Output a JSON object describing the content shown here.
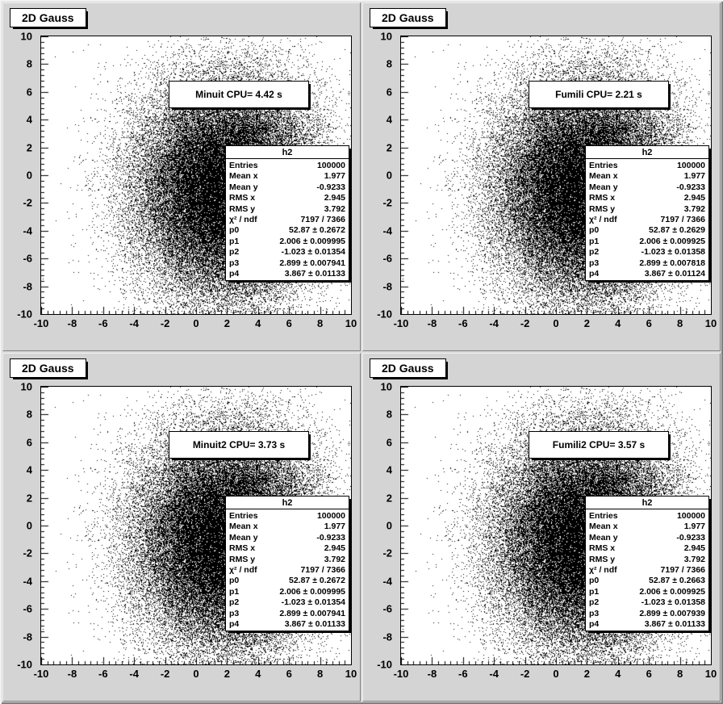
{
  "window": {
    "background": "#d4d4d4",
    "accent": "#000000"
  },
  "axis": {
    "min": -10,
    "max": 10,
    "ticks": [
      -10,
      -8,
      -6,
      -4,
      -2,
      0,
      2,
      4,
      6,
      8,
      10
    ]
  },
  "pads": [
    {
      "title": "2D Gauss",
      "fit_label": "Minuit CPU= 4.42 s",
      "stats": {
        "name": "h2",
        "rows": [
          {
            "label": "Entries",
            "value": "100000"
          },
          {
            "label": "Mean x",
            "value": "1.977"
          },
          {
            "label": "Mean y",
            "value": "-0.9233"
          },
          {
            "label": "RMS x",
            "value": "2.945"
          },
          {
            "label": "RMS y",
            "value": "3.792"
          },
          {
            "label": "χ² / ndf",
            "value": "7197 / 7366"
          },
          {
            "label": "p0",
            "value": "52.87 ± 0.2672"
          },
          {
            "label": "p1",
            "value": "2.006 ± 0.009995"
          },
          {
            "label": "p2",
            "value": "-1.023 ± 0.01354"
          },
          {
            "label": "p3",
            "value": "2.899 ± 0.007941"
          },
          {
            "label": "p4",
            "value": "3.867 ± 0.01133"
          }
        ]
      }
    },
    {
      "title": "2D Gauss",
      "fit_label": "Fumili CPU= 2.21 s",
      "stats": {
        "name": "h2",
        "rows": [
          {
            "label": "Entries",
            "value": "100000"
          },
          {
            "label": "Mean x",
            "value": "1.977"
          },
          {
            "label": "Mean y",
            "value": "-0.9233"
          },
          {
            "label": "RMS x",
            "value": "2.945"
          },
          {
            "label": "RMS y",
            "value": "3.792"
          },
          {
            "label": "χ² / ndf",
            "value": "7197 / 7366"
          },
          {
            "label": "p0",
            "value": "52.87 ± 0.2629"
          },
          {
            "label": "p1",
            "value": "2.006 ± 0.009925"
          },
          {
            "label": "p2",
            "value": "-1.023 ± 0.01358"
          },
          {
            "label": "p3",
            "value": "2.899 ± 0.007818"
          },
          {
            "label": "p4",
            "value": "3.867 ± 0.01124"
          }
        ]
      }
    },
    {
      "title": "2D Gauss",
      "fit_label": "Minuit2 CPU= 3.73 s",
      "stats": {
        "name": "h2",
        "rows": [
          {
            "label": "Entries",
            "value": "100000"
          },
          {
            "label": "Mean x",
            "value": "1.977"
          },
          {
            "label": "Mean y",
            "value": "-0.9233"
          },
          {
            "label": "RMS x",
            "value": "2.945"
          },
          {
            "label": "RMS y",
            "value": "3.792"
          },
          {
            "label": "χ² / ndf",
            "value": "7197 / 7366"
          },
          {
            "label": "p0",
            "value": "52.87 ± 0.2672"
          },
          {
            "label": "p1",
            "value": "2.006 ± 0.009995"
          },
          {
            "label": "p2",
            "value": "-1.023 ± 0.01354"
          },
          {
            "label": "p3",
            "value": "2.899 ± 0.007941"
          },
          {
            "label": "p4",
            "value": "3.867 ± 0.01133"
          }
        ]
      }
    },
    {
      "title": "2D Gauss",
      "fit_label": "Fumili2 CPU= 3.57 s",
      "stats": {
        "name": "h2",
        "rows": [
          {
            "label": "Entries",
            "value": "100000"
          },
          {
            "label": "Mean x",
            "value": "1.977"
          },
          {
            "label": "Mean y",
            "value": "-0.9233"
          },
          {
            "label": "RMS x",
            "value": "2.945"
          },
          {
            "label": "RMS y",
            "value": "3.792"
          },
          {
            "label": "χ² / ndf",
            "value": "7197 / 7366"
          },
          {
            "label": "p0",
            "value": "52.87 ± 0.2663"
          },
          {
            "label": "p1",
            "value": "2.006 ± 0.009925"
          },
          {
            "label": "p2",
            "value": "-1.023 ± 0.01358"
          },
          {
            "label": "p3",
            "value": "2.899 ± 0.007939"
          },
          {
            "label": "p4",
            "value": "3.867 ± 0.01133"
          }
        ]
      }
    }
  ],
  "chart_data": [
    {
      "type": "scatter",
      "title": "2D Gauss",
      "xlabel": "",
      "ylabel": "",
      "xlim": [
        -10,
        10
      ],
      "ylim": [
        -10,
        10
      ],
      "x_ticks": [
        -10,
        -8,
        -6,
        -4,
        -2,
        0,
        2,
        4,
        6,
        8,
        10
      ],
      "y_ticks": [
        -10,
        -8,
        -6,
        -4,
        -2,
        0,
        2,
        4,
        6,
        8,
        10
      ],
      "grid": false,
      "histogram_name": "h2",
      "entries": 100000,
      "mean_x": 1.977,
      "mean_y": -0.9233,
      "rms_x": 2.945,
      "rms_y": 3.792,
      "distribution": {
        "kind": "gaussian2d",
        "mean_x": 2.006,
        "mean_y": -1.023,
        "sigma_x": 2.899,
        "sigma_y": 3.867
      },
      "fit": {
        "fitter": "Minuit",
        "cpu_seconds": 4.42,
        "chi2": 7197,
        "ndf": 7366,
        "parameters": [
          {
            "name": "p0",
            "value": 52.87,
            "error": 0.2672
          },
          {
            "name": "p1",
            "value": 2.006,
            "error": 0.009995
          },
          {
            "name": "p2",
            "value": -1.023,
            "error": 0.01354
          },
          {
            "name": "p3",
            "value": 2.899,
            "error": 0.007941
          },
          {
            "name": "p4",
            "value": 3.867,
            "error": 0.01133
          }
        ]
      }
    },
    {
      "type": "scatter",
      "title": "2D Gauss",
      "xlabel": "",
      "ylabel": "",
      "xlim": [
        -10,
        10
      ],
      "ylim": [
        -10,
        10
      ],
      "x_ticks": [
        -10,
        -8,
        -6,
        -4,
        -2,
        0,
        2,
        4,
        6,
        8,
        10
      ],
      "y_ticks": [
        -10,
        -8,
        -6,
        -4,
        -2,
        0,
        2,
        4,
        6,
        8,
        10
      ],
      "grid": false,
      "histogram_name": "h2",
      "entries": 100000,
      "mean_x": 1.977,
      "mean_y": -0.9233,
      "rms_x": 2.945,
      "rms_y": 3.792,
      "distribution": {
        "kind": "gaussian2d",
        "mean_x": 2.006,
        "mean_y": -1.023,
        "sigma_x": 2.899,
        "sigma_y": 3.867
      },
      "fit": {
        "fitter": "Fumili",
        "cpu_seconds": 2.21,
        "chi2": 7197,
        "ndf": 7366,
        "parameters": [
          {
            "name": "p0",
            "value": 52.87,
            "error": 0.2629
          },
          {
            "name": "p1",
            "value": 2.006,
            "error": 0.009925
          },
          {
            "name": "p2",
            "value": -1.023,
            "error": 0.01358
          },
          {
            "name": "p3",
            "value": 2.899,
            "error": 0.007818
          },
          {
            "name": "p4",
            "value": 3.867,
            "error": 0.01124
          }
        ]
      }
    },
    {
      "type": "scatter",
      "title": "2D Gauss",
      "xlabel": "",
      "ylabel": "",
      "xlim": [
        -10,
        10
      ],
      "ylim": [
        -10,
        10
      ],
      "x_ticks": [
        -10,
        -8,
        -6,
        -4,
        -2,
        0,
        2,
        4,
        6,
        8,
        10
      ],
      "y_ticks": [
        -10,
        -8,
        -6,
        -4,
        -2,
        0,
        2,
        4,
        6,
        8,
        10
      ],
      "grid": false,
      "histogram_name": "h2",
      "entries": 100000,
      "mean_x": 1.977,
      "mean_y": -0.9233,
      "rms_x": 2.945,
      "rms_y": 3.792,
      "distribution": {
        "kind": "gaussian2d",
        "mean_x": 2.006,
        "mean_y": -1.023,
        "sigma_x": 2.899,
        "sigma_y": 3.867
      },
      "fit": {
        "fitter": "Minuit2",
        "cpu_seconds": 3.73,
        "chi2": 7197,
        "ndf": 7366,
        "parameters": [
          {
            "name": "p0",
            "value": 52.87,
            "error": 0.2672
          },
          {
            "name": "p1",
            "value": 2.006,
            "error": 0.009995
          },
          {
            "name": "p2",
            "value": -1.023,
            "error": 0.01354
          },
          {
            "name": "p3",
            "value": 2.899,
            "error": 0.007941
          },
          {
            "name": "p4",
            "value": 3.867,
            "error": 0.01133
          }
        ]
      }
    },
    {
      "type": "scatter",
      "title": "2D Gauss",
      "xlabel": "",
      "ylabel": "",
      "xlim": [
        -10,
        10
      ],
      "ylim": [
        -10,
        10
      ],
      "x_ticks": [
        -10,
        -8,
        -6,
        -4,
        -2,
        0,
        2,
        4,
        6,
        8,
        10
      ],
      "y_ticks": [
        -10,
        -8,
        -6,
        -4,
        -2,
        0,
        2,
        4,
        6,
        8,
        10
      ],
      "grid": false,
      "histogram_name": "h2",
      "entries": 100000,
      "mean_x": 1.977,
      "mean_y": -0.9233,
      "rms_x": 2.945,
      "rms_y": 3.792,
      "distribution": {
        "kind": "gaussian2d",
        "mean_x": 2.006,
        "mean_y": -1.023,
        "sigma_x": 2.899,
        "sigma_y": 3.867
      },
      "fit": {
        "fitter": "Fumili2",
        "cpu_seconds": 3.57,
        "chi2": 7197,
        "ndf": 7366,
        "parameters": [
          {
            "name": "p0",
            "value": 52.87,
            "error": 0.2663
          },
          {
            "name": "p1",
            "value": 2.006,
            "error": 0.009925
          },
          {
            "name": "p2",
            "value": -1.023,
            "error": 0.01358
          },
          {
            "name": "p3",
            "value": 2.899,
            "error": 0.007939
          },
          {
            "name": "p4",
            "value": 3.867,
            "error": 0.01133
          }
        ]
      }
    }
  ]
}
